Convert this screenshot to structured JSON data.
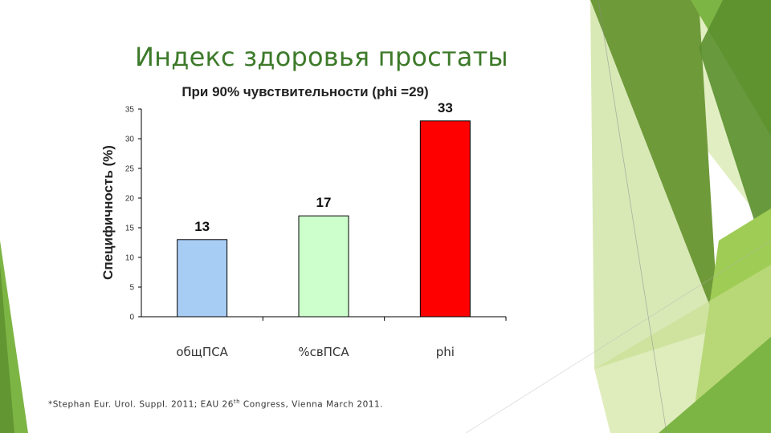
{
  "slide": {
    "title": "Индекс здоровья простаты",
    "footnote_before": "*Stephan Eur. Urol. Suppl. 2011; EAU 26",
    "footnote_sup": "th",
    "footnote_after": " Congress, Vienna March 2011."
  },
  "chart_data": {
    "type": "bar",
    "title": "При 90% чувствительности (phi =29)",
    "xlabel": "",
    "ylabel": "Специфичность (%)",
    "categories": [
      "общПСА",
      "%свПСА",
      "phi"
    ],
    "values": [
      13,
      17,
      33
    ],
    "data_labels": [
      "13",
      "17",
      "33"
    ],
    "ylim": [
      0,
      35
    ],
    "yticks": [
      0,
      5,
      10,
      15,
      20,
      25,
      30,
      35
    ],
    "bar_colors": [
      "#a8cdf5",
      "#ccffcc",
      "#ff0000"
    ],
    "grid": false,
    "legend": "none"
  },
  "theme": {
    "title_color": "#3d7a2a",
    "accent_greens": [
      "#5b8f2f",
      "#7db544",
      "#9fcc55",
      "#c9e08f"
    ]
  }
}
